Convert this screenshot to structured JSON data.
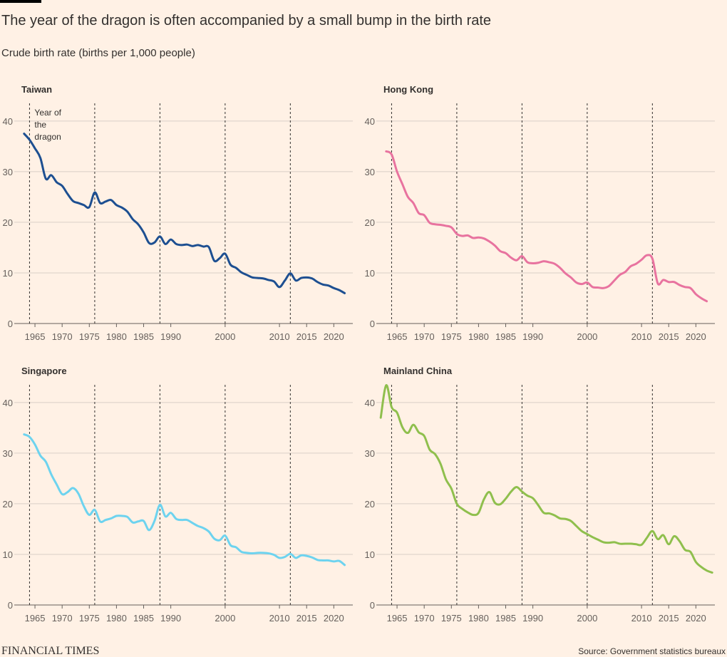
{
  "title": "The year of the dragon is often accompanied by a small bump in the birth rate",
  "subtitle": "Crude birth rate (births per 1,000 people)",
  "brand": "FINANCIAL TIMES",
  "source": "Source: Government statistics bureaux",
  "chart_data": [
    {
      "type": "line",
      "title": "Taiwan",
      "color": "#1d4f91",
      "annotation": [
        "Year of",
        "the",
        "dragon"
      ],
      "dragon_years": [
        1964,
        1976,
        1988,
        2000,
        2012
      ],
      "xlim": [
        1962.5,
        2023.5
      ],
      "ylim": [
        0,
        43.5
      ],
      "xticks": [
        1965,
        1970,
        1975,
        1980,
        1985,
        1990,
        2000,
        2010,
        2015,
        2020
      ],
      "yticks": [
        0,
        10,
        20,
        30,
        40
      ],
      "grid": true,
      "x": [
        1963,
        1964,
        1965,
        1966,
        1967,
        1968,
        1969,
        1970,
        1971,
        1972,
        1973,
        1974,
        1975,
        1976,
        1977,
        1978,
        1979,
        1980,
        1981,
        1982,
        1983,
        1984,
        1985,
        1986,
        1987,
        1988,
        1989,
        1990,
        1991,
        1992,
        1993,
        1994,
        1995,
        1996,
        1997,
        1998,
        1999,
        2000,
        2001,
        2002,
        2003,
        2004,
        2005,
        2006,
        2007,
        2008,
        2009,
        2010,
        2011,
        2012,
        2013,
        2014,
        2015,
        2016,
        2017,
        2018,
        2019,
        2020,
        2021,
        2022
      ],
      "values": [
        37.5,
        36.3,
        34.6,
        32.7,
        28.6,
        29.3,
        27.9,
        27.2,
        25.6,
        24.2,
        23.8,
        23.4,
        23.0,
        25.9,
        23.8,
        24.1,
        24.4,
        23.4,
        22.9,
        22.1,
        20.6,
        19.6,
        18.0,
        15.9,
        16.0,
        17.2,
        15.7,
        16.6,
        15.7,
        15.5,
        15.6,
        15.3,
        15.5,
        15.2,
        15.1,
        12.4,
        12.9,
        13.8,
        11.6,
        11.0,
        10.1,
        9.6,
        9.1,
        9.0,
        8.9,
        8.6,
        8.3,
        7.2,
        8.5,
        9.9,
        8.5,
        9.0,
        9.1,
        8.9,
        8.2,
        7.7,
        7.5,
        7.0,
        6.6,
        6.0
      ]
    },
    {
      "type": "line",
      "title": "Hong Kong",
      "color": "#e8739f",
      "dragon_years": [
        1964,
        1976,
        1988,
        2000,
        2012
      ],
      "xlim": [
        1962.5,
        2023.5
      ],
      "ylim": [
        0,
        43.5
      ],
      "xticks": [
        1965,
        1970,
        1975,
        1980,
        1985,
        1990,
        2000,
        2010,
        2015,
        2020
      ],
      "yticks": [
        0,
        10,
        20,
        30,
        40
      ],
      "grid": true,
      "x": [
        1963,
        1964,
        1965,
        1966,
        1967,
        1968,
        1969,
        1970,
        1971,
        1972,
        1973,
        1974,
        1975,
        1976,
        1977,
        1978,
        1979,
        1980,
        1981,
        1982,
        1983,
        1984,
        1985,
        1986,
        1987,
        1988,
        1989,
        1990,
        1991,
        1992,
        1993,
        1994,
        1995,
        1996,
        1997,
        1998,
        1999,
        2000,
        2001,
        2002,
        2003,
        2004,
        2005,
        2006,
        2007,
        2008,
        2009,
        2010,
        2011,
        2012,
        2013,
        2014,
        2015,
        2016,
        2017,
        2018,
        2019,
        2020,
        2021,
        2022
      ],
      "values": [
        34.0,
        33.4,
        30.0,
        27.5,
        25.0,
        23.8,
        21.8,
        21.4,
        19.9,
        19.6,
        19.5,
        19.3,
        19.0,
        17.7,
        17.3,
        17.4,
        16.9,
        17.0,
        16.8,
        16.2,
        15.4,
        14.3,
        13.9,
        13.0,
        12.5,
        13.3,
        12.1,
        11.9,
        12.0,
        12.3,
        12.1,
        11.8,
        11.0,
        9.9,
        9.1,
        8.1,
        7.8,
        8.1,
        7.2,
        7.1,
        7.0,
        7.4,
        8.5,
        9.6,
        10.2,
        11.3,
        11.8,
        12.6,
        13.5,
        12.8,
        7.9,
        8.6,
        8.2,
        8.2,
        7.6,
        7.2,
        7.0,
        5.8,
        5.0,
        4.4
      ]
    },
    {
      "type": "line",
      "title": "Singapore",
      "color": "#6dd3ef",
      "dragon_years": [
        1964,
        1976,
        1988,
        2000,
        2012
      ],
      "xlim": [
        1962.5,
        2023.5
      ],
      "ylim": [
        0,
        43.5
      ],
      "xticks": [
        1965,
        1970,
        1975,
        1980,
        1985,
        1990,
        2000,
        2010,
        2015,
        2020
      ],
      "yticks": [
        0,
        10,
        20,
        30,
        40
      ],
      "grid": true,
      "x": [
        1963,
        1964,
        1965,
        1966,
        1967,
        1968,
        1969,
        1970,
        1971,
        1972,
        1973,
        1974,
        1975,
        1976,
        1977,
        1978,
        1979,
        1980,
        1981,
        1982,
        1983,
        1984,
        1985,
        1986,
        1987,
        1988,
        1989,
        1990,
        1991,
        1992,
        1993,
        1994,
        1995,
        1996,
        1997,
        1998,
        1999,
        2000,
        2001,
        2002,
        2003,
        2004,
        2005,
        2006,
        2007,
        2008,
        2009,
        2010,
        2011,
        2012,
        2013,
        2014,
        2015,
        2016,
        2017,
        2018,
        2019,
        2020,
        2021,
        2022
      ],
      "values": [
        33.7,
        33.2,
        31.7,
        29.5,
        28.3,
        25.8,
        23.8,
        21.9,
        22.3,
        23.1,
        22.0,
        19.5,
        17.8,
        18.8,
        16.5,
        16.8,
        17.1,
        17.6,
        17.6,
        17.4,
        16.3,
        16.5,
        16.6,
        14.8,
        16.6,
        19.8,
        17.5,
        18.2,
        17.0,
        16.8,
        16.8,
        16.2,
        15.6,
        15.2,
        14.5,
        13.1,
        12.8,
        13.7,
        11.8,
        11.4,
        10.5,
        10.3,
        10.2,
        10.3,
        10.3,
        10.2,
        9.9,
        9.3,
        9.5,
        10.1,
        9.3,
        9.8,
        9.7,
        9.4,
        8.9,
        8.8,
        8.8,
        8.6,
        8.7,
        7.9
      ]
    },
    {
      "type": "line",
      "title": "Mainland China",
      "color": "#8fbf4d",
      "dragon_years": [
        1964,
        1976,
        1988,
        2000,
        2012
      ],
      "xlim": [
        1962.5,
        2023.5
      ],
      "ylim": [
        0,
        43.5
      ],
      "xticks": [
        1965,
        1970,
        1975,
        1980,
        1985,
        1990,
        2000,
        2010,
        2015,
        2020
      ],
      "yticks": [
        0,
        10,
        20,
        30,
        40
      ],
      "grid": true,
      "x": [
        1962,
        1963,
        1964,
        1965,
        1966,
        1967,
        1968,
        1969,
        1970,
        1971,
        1972,
        1973,
        1974,
        1975,
        1976,
        1977,
        1978,
        1979,
        1980,
        1981,
        1982,
        1983,
        1984,
        1985,
        1986,
        1987,
        1988,
        1989,
        1990,
        1991,
        1992,
        1993,
        1994,
        1995,
        1996,
        1997,
        1998,
        1999,
        2000,
        2001,
        2002,
        2003,
        2004,
        2005,
        2006,
        2007,
        2008,
        2009,
        2010,
        2011,
        2012,
        2013,
        2014,
        2015,
        2016,
        2017,
        2018,
        2019,
        2020,
        2021,
        2022,
        2023
      ],
      "values": [
        37.0,
        43.4,
        39.1,
        38.0,
        35.1,
        34.0,
        35.6,
        34.1,
        33.4,
        30.7,
        29.8,
        27.9,
        24.8,
        23.0,
        20.0,
        19.0,
        18.3,
        17.8,
        18.2,
        20.9,
        22.3,
        20.2,
        19.9,
        21.0,
        22.4,
        23.3,
        22.4,
        21.6,
        21.1,
        19.7,
        18.2,
        18.1,
        17.7,
        17.1,
        17.0,
        16.6,
        15.6,
        14.6,
        14.0,
        13.4,
        12.9,
        12.4,
        12.3,
        12.4,
        12.1,
        12.1,
        12.1,
        12.0,
        11.9,
        13.3,
        14.6,
        13.0,
        13.8,
        12.0,
        13.6,
        12.6,
        10.9,
        10.5,
        8.5,
        7.5,
        6.8,
        6.4
      ]
    }
  ]
}
